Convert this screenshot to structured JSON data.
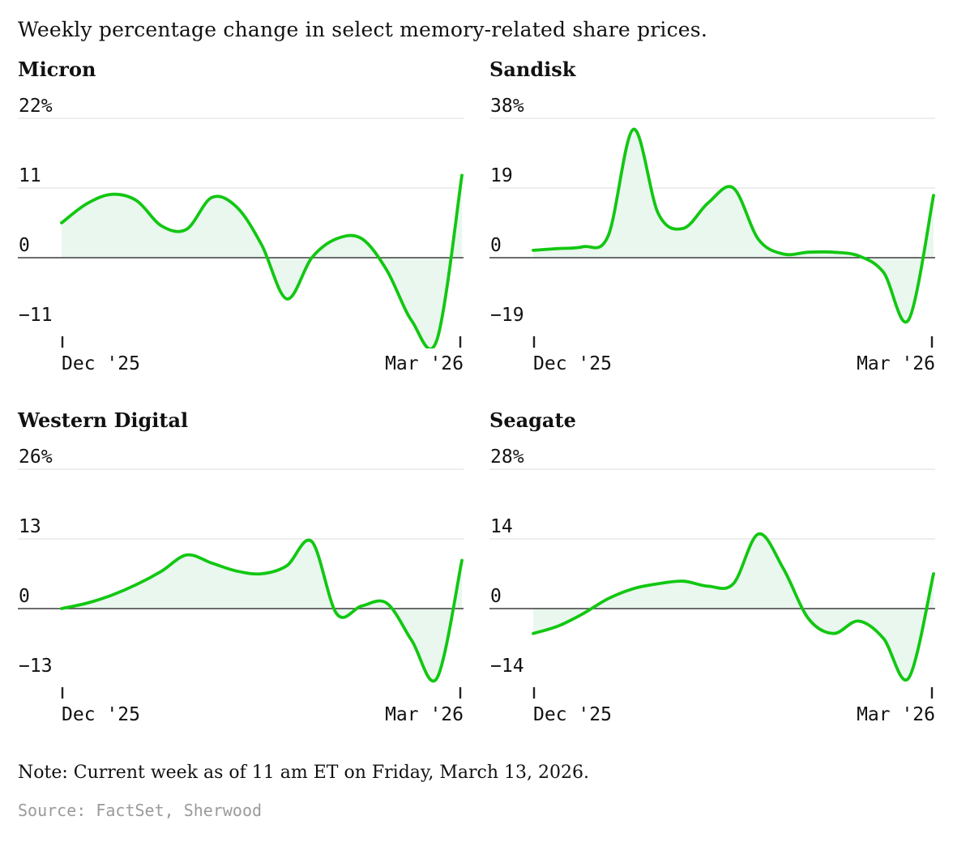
{
  "page": {
    "title": "Weekly percentage change in select memory-related share prices.",
    "note": "Note: Current week as of 11 am ET on Friday, March 13, 2026.",
    "source": "Source: FactSet, Sherwood"
  },
  "style": {
    "line_color": "#12c712",
    "fill_color": "#e9f7ef",
    "grid_color": "#dcdcdc",
    "zero_color": "#3d3d3d",
    "tick_color": "#222222"
  },
  "chart_data": [
    {
      "type": "line",
      "title": "Micron",
      "unit": "%",
      "x_tick_labels": [
        "Dec '25",
        "Mar '26"
      ],
      "gridline_values": [
        22,
        11,
        0,
        -11
      ],
      "gridline_labels": [
        "22%",
        "11",
        "0",
        "−11"
      ],
      "ylim": [
        -14.3,
        22
      ],
      "values": [
        5.5,
        8.5,
        10,
        9,
        5,
        4.5,
        9.5,
        8,
        2,
        -6.5,
        0,
        3,
        3,
        -2,
        -10,
        -13,
        13
      ]
    },
    {
      "type": "line",
      "title": "Sandisk",
      "unit": "%",
      "x_tick_labels": [
        "Dec '25",
        "Mar '26"
      ],
      "gridline_values": [
        38,
        19,
        0,
        -19
      ],
      "gridline_labels": [
        "38%",
        "19",
        "0",
        "−19"
      ],
      "ylim": [
        -24.7,
        38
      ],
      "values": [
        2,
        2.5,
        3,
        6,
        35,
        12,
        8,
        15,
        19,
        5,
        1,
        1.5,
        1.5,
        0.5,
        -4,
        -17,
        17
      ]
    },
    {
      "type": "line",
      "title": "Western Digital",
      "unit": "%",
      "x_tick_labels": [
        "Dec '25",
        "Mar '26"
      ],
      "gridline_values": [
        26,
        13,
        0,
        -13
      ],
      "gridline_labels": [
        "26%",
        "13",
        "0",
        "−13"
      ],
      "ylim": [
        -16.9,
        26
      ],
      "values": [
        0,
        1,
        2.5,
        4.5,
        7,
        10,
        8.5,
        7,
        6.5,
        8,
        12.5,
        -1,
        0.5,
        1,
        -6,
        -13,
        9
      ]
    },
    {
      "type": "line",
      "title": "Seagate",
      "unit": "%",
      "x_tick_labels": [
        "Dec '25",
        "Mar '26"
      ],
      "gridline_values": [
        28,
        14,
        0,
        -14
      ],
      "gridline_labels": [
        "28%",
        "14",
        "0",
        "−14"
      ],
      "ylim": [
        -18.2,
        28
      ],
      "values": [
        -5,
        -3.5,
        -1,
        2,
        4,
        5,
        5.5,
        4.5,
        5,
        15,
        8,
        -2,
        -5,
        -2.5,
        -6,
        -14,
        7
      ]
    }
  ]
}
